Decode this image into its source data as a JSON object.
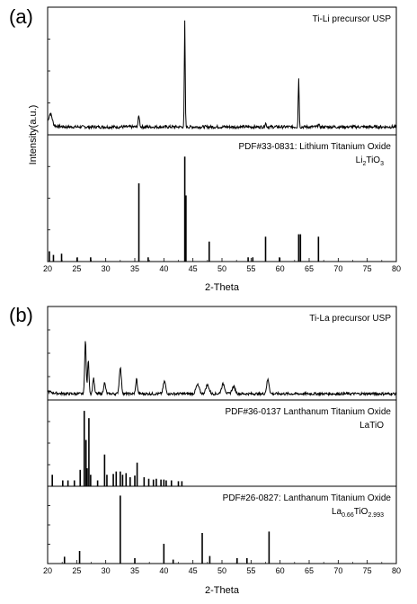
{
  "chart_data": [
    {
      "panel_label": "(a)",
      "type": "line",
      "xlabel": "2-Theta",
      "ylabel": "Intensity(a.u.)",
      "xlim": [
        20,
        80
      ],
      "x_ticks": [
        20,
        25,
        30,
        35,
        40,
        45,
        50,
        55,
        60,
        65,
        70,
        75,
        80
      ],
      "subpanels": [
        {
          "label": "Ti-Li precursor USP",
          "kind": "pattern",
          "peaks": [
            {
              "x": 20.5,
              "y": 0.09,
              "w": 0.8
            },
            {
              "x": 35.7,
              "y": 0.09,
              "w": 0.35
            },
            {
              "x": 43.6,
              "y": 0.86,
              "w": 0.22
            },
            {
              "x": 57.5,
              "y": 0.03,
              "w": 0.35
            },
            {
              "x": 63.2,
              "y": 0.4,
              "w": 0.22
            },
            {
              "x": 66.6,
              "y": 0.02,
              "w": 0.3
            }
          ],
          "baseline": 0.05,
          "noise": 0.025
        },
        {
          "label": "PDF#33-0831: Lithium Titanium Oxide",
          "formula": [
            {
              "t": "Li",
              "sub": false
            },
            {
              "t": "2",
              "sub": true
            },
            {
              "t": "TiO",
              "sub": false
            },
            {
              "t": "3",
              "sub": true
            }
          ],
          "kind": "sticks",
          "sticks": [
            [
              20.3,
              0.07
            ],
            [
              21.0,
              0.04
            ],
            [
              22.4,
              0.05
            ],
            [
              25.1,
              0.02
            ],
            [
              27.4,
              0.02
            ],
            [
              35.7,
              0.63
            ],
            [
              37.3,
              0.02
            ],
            [
              43.6,
              0.85
            ],
            [
              43.8,
              0.53
            ],
            [
              47.8,
              0.15
            ],
            [
              54.5,
              0.02
            ],
            [
              55.3,
              0.02
            ],
            [
              57.5,
              0.19
            ],
            [
              59.9,
              0.02
            ],
            [
              63.2,
              0.21
            ],
            [
              63.5,
              0.21
            ],
            [
              66.6,
              0.19
            ]
          ]
        }
      ]
    },
    {
      "panel_label": "(b)",
      "type": "line",
      "xlabel": "2-Theta",
      "xlim": [
        20,
        80
      ],
      "x_ticks": [
        20,
        25,
        30,
        35,
        40,
        45,
        50,
        55,
        60,
        65,
        70,
        75,
        80
      ],
      "subpanels": [
        {
          "label": "Ti-La precursor USP",
          "kind": "pattern",
          "peaks": [
            {
              "x": 26.5,
              "y": 0.62,
              "w": 0.35
            },
            {
              "x": 27.0,
              "y": 0.38,
              "w": 0.35
            },
            {
              "x": 27.9,
              "y": 0.18,
              "w": 0.4
            },
            {
              "x": 29.8,
              "y": 0.12,
              "w": 0.5
            },
            {
              "x": 32.5,
              "y": 0.3,
              "w": 0.5
            },
            {
              "x": 35.3,
              "y": 0.17,
              "w": 0.4
            },
            {
              "x": 40.1,
              "y": 0.14,
              "w": 0.6
            },
            {
              "x": 45.8,
              "y": 0.1,
              "w": 0.8
            },
            {
              "x": 47.5,
              "y": 0.1,
              "w": 0.8
            },
            {
              "x": 50.2,
              "y": 0.11,
              "w": 0.8
            },
            {
              "x": 52.0,
              "y": 0.08,
              "w": 0.8
            },
            {
              "x": 57.9,
              "y": 0.16,
              "w": 0.6
            }
          ],
          "baseline": 0.05,
          "noise": 0.03
        },
        {
          "label": "PDF#36-0137 Lanthanum Titanium Oxide",
          "formula": [
            {
              "t": "LaTiO",
              "sub": false
            }
          ],
          "kind": "sticks",
          "sticks": [
            [
              20.8,
              0.12
            ],
            [
              22.6,
              0.05
            ],
            [
              23.5,
              0.05
            ],
            [
              24.6,
              0.05
            ],
            [
              25.6,
              0.18
            ],
            [
              26.3,
              0.91
            ],
            [
              26.6,
              0.55
            ],
            [
              26.8,
              0.2
            ],
            [
              27.1,
              0.82
            ],
            [
              27.4,
              0.12
            ],
            [
              28.6,
              0.05
            ],
            [
              29.8,
              0.37
            ],
            [
              30.2,
              0.12
            ],
            [
              31.3,
              0.13
            ],
            [
              31.8,
              0.16
            ],
            [
              32.5,
              0.16
            ],
            [
              32.9,
              0.12
            ],
            [
              33.5,
              0.14
            ],
            [
              34.2,
              0.09
            ],
            [
              35.0,
              0.11
            ],
            [
              35.4,
              0.27
            ],
            [
              36.6,
              0.09
            ],
            [
              37.4,
              0.07
            ],
            [
              38.2,
              0.06
            ],
            [
              38.7,
              0.07
            ],
            [
              39.5,
              0.06
            ],
            [
              40.0,
              0.06
            ],
            [
              40.4,
              0.05
            ],
            [
              41.3,
              0.05
            ],
            [
              42.5,
              0.04
            ],
            [
              43.1,
              0.04
            ]
          ]
        },
        {
          "label": "PDF#26-0827: Lanthanum Titanium Oxide",
          "formula": [
            {
              "t": "La",
              "sub": false
            },
            {
              "t": "0.66",
              "sub": true
            },
            {
              "t": "TiO",
              "sub": false
            },
            {
              "t": "2.993",
              "sub": true
            }
          ],
          "kind": "sticks",
          "sticks": [
            [
              22.9,
              0.07
            ],
            [
              25.5,
              0.15
            ],
            [
              32.5,
              0.92
            ],
            [
              35.0,
              0.05
            ],
            [
              40.0,
              0.25
            ],
            [
              41.6,
              0.03
            ],
            [
              46.6,
              0.4
            ],
            [
              47.9,
              0.08
            ],
            [
              52.6,
              0.05
            ],
            [
              54.3,
              0.05
            ],
            [
              58.1,
              0.42
            ]
          ]
        }
      ]
    }
  ]
}
